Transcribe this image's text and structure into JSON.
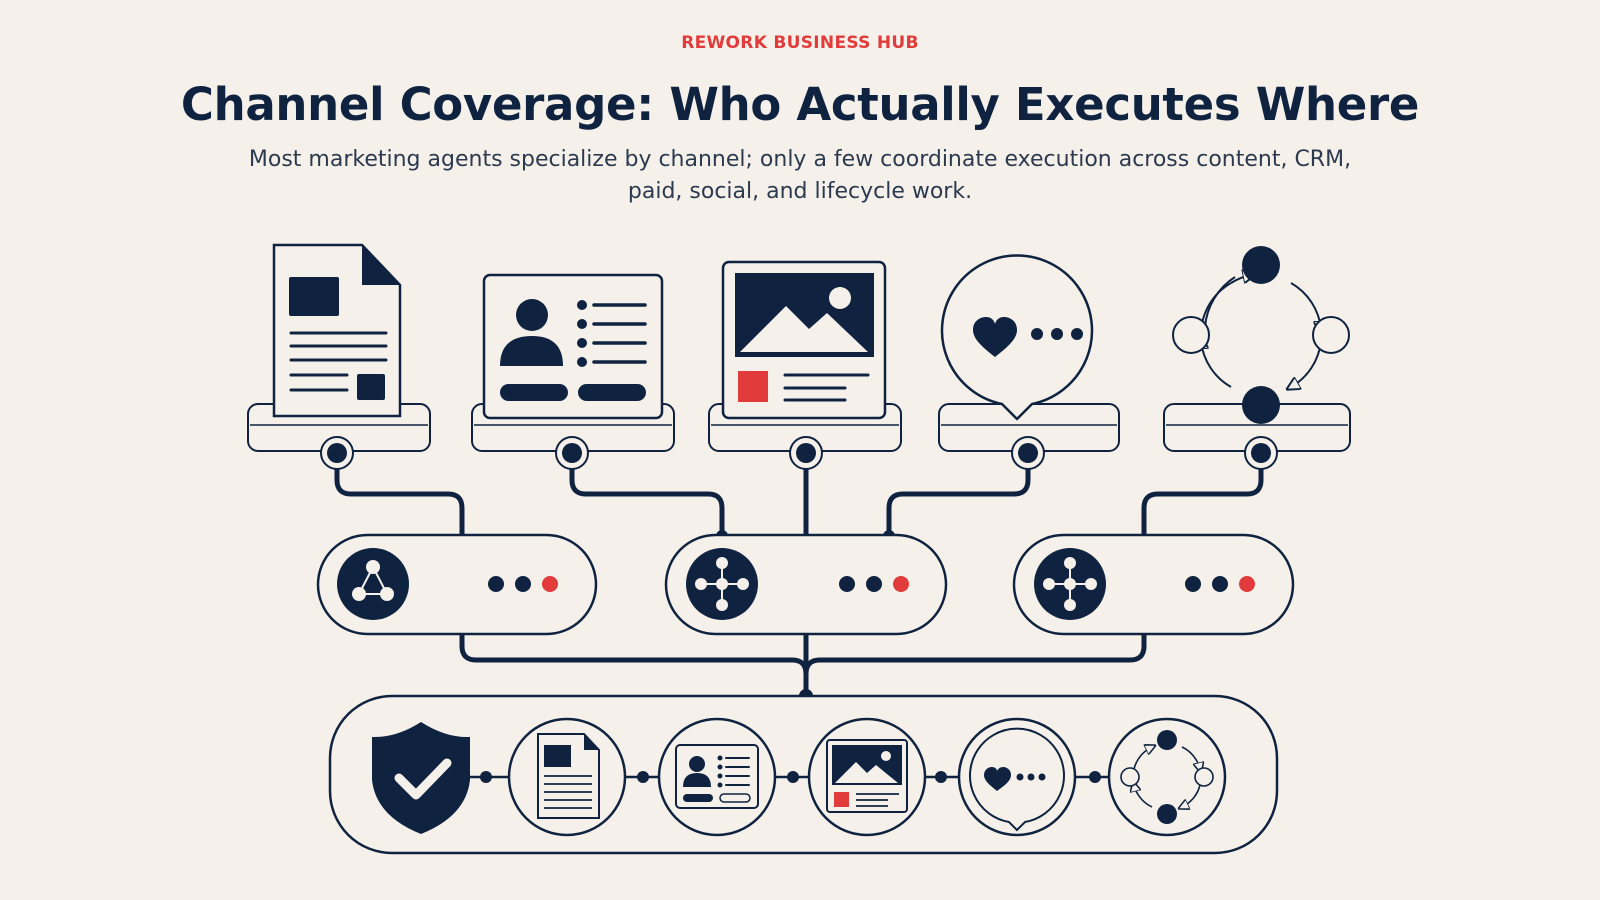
{
  "header": {
    "eyebrow": "REWORK BUSINESS HUB",
    "title": "Channel Coverage: Who Actually Executes Where",
    "subtitle": "Most marketing agents specialize by channel; only a few coordinate execution across content, CRM, paid, social, and lifecycle work."
  },
  "colors": {
    "navy": "#0f2340",
    "accent": "#e23b3b",
    "background": "#f5f1ea",
    "panel": "#f5f1ea"
  },
  "channels": [
    {
      "icon": "document-icon"
    },
    {
      "icon": "contact-card-icon"
    },
    {
      "icon": "image-ad-icon"
    },
    {
      "icon": "speech-bubble-heart-icon"
    },
    {
      "icon": "lifecycle-cycle-icon"
    }
  ],
  "agents": [
    {
      "icon": "network-node-icon"
    },
    {
      "icon": "hub-node-icon"
    },
    {
      "icon": "hub-node-icon"
    }
  ],
  "coordinator": {
    "icons": [
      "shield-check-icon",
      "document-icon",
      "contact-card-icon",
      "image-ad-icon",
      "speech-bubble-heart-icon",
      "lifecycle-cycle-icon"
    ]
  }
}
